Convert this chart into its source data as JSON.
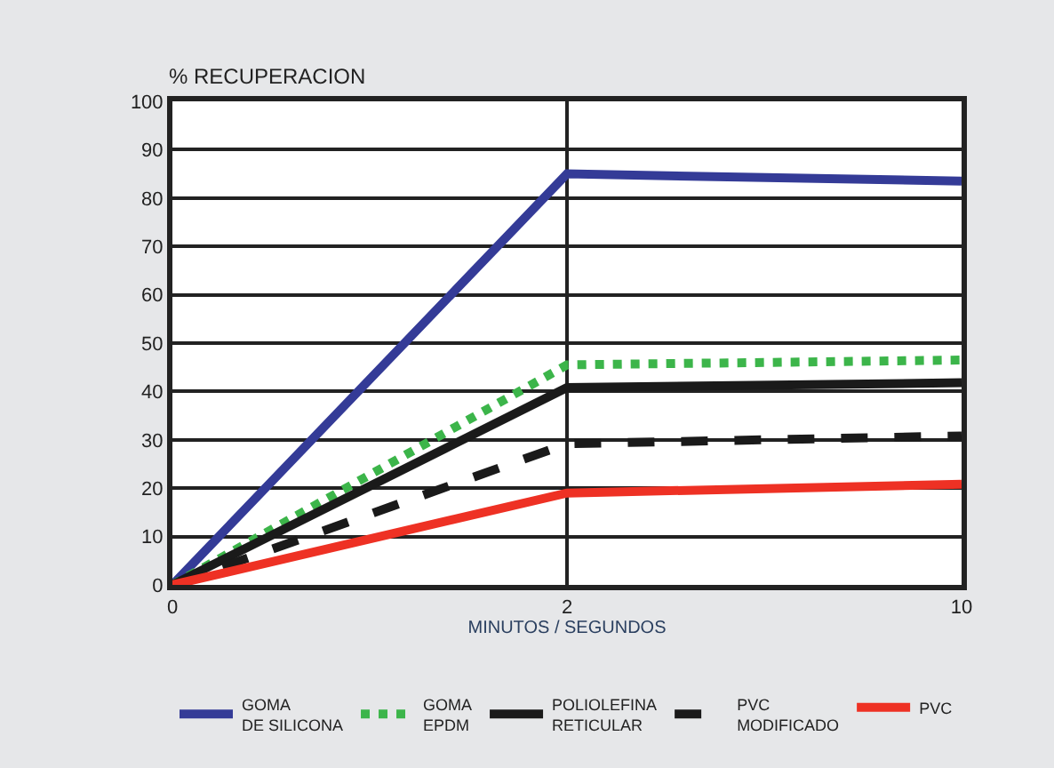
{
  "chart_data": {
    "type": "line",
    "ylabel": "% RECUPERACION",
    "xlabel": "MINUTOS / SEGUNDOS",
    "categories": [
      "0",
      "2",
      "10"
    ],
    "series": [
      {
        "name": "GOMA\nDE SILICONA",
        "color": "#343b97",
        "values": [
          0,
          85,
          83.5
        ],
        "line_style": "solid"
      },
      {
        "name": "GOMA\nEPDM",
        "color": "#3cb54a",
        "values": [
          0,
          45.5,
          46.5
        ],
        "line_style": "dotted"
      },
      {
        "name": "POLIOLEFINA\nRETICULAR",
        "color": "#1a1a1a",
        "values": [
          0,
          40.8,
          41.8
        ],
        "line_style": "solid"
      },
      {
        "name": "PVC\nMODIFICADO",
        "color": "#1a1a1a",
        "values": [
          0,
          29.2,
          30.8
        ],
        "line_style": "dashed"
      },
      {
        "name": "PVC",
        "color": "#ee3124",
        "values": [
          0,
          19,
          20.8
        ],
        "line_style": "solid"
      }
    ],
    "ylim": [
      0,
      100
    ],
    "yticks": [
      0,
      10,
      20,
      30,
      40,
      50,
      60,
      70,
      80,
      90,
      100
    ],
    "grid": true,
    "legend": "bottom",
    "marker": "none"
  }
}
